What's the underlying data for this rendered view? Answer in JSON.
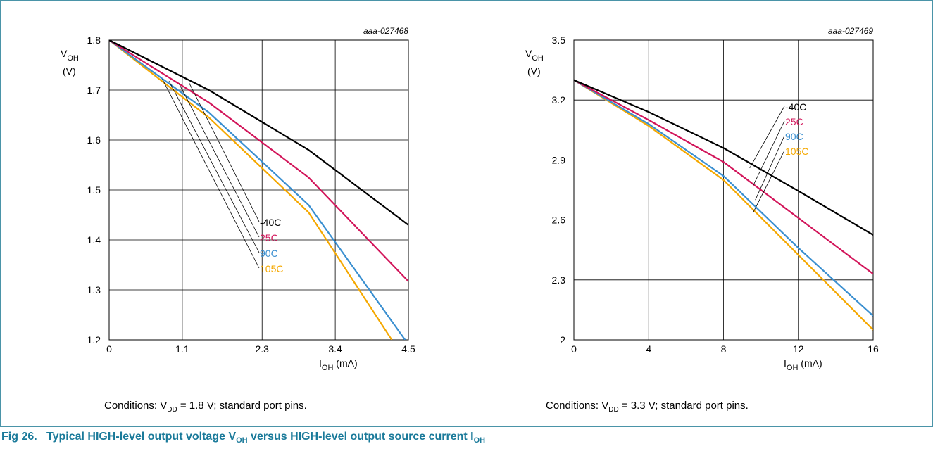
{
  "figure": {
    "number": "Fig 26.",
    "caption_pre": "Typical HIGH-level output voltage V",
    "caption_sub1": "OH",
    "caption_mid": " versus HIGH-level output source current I",
    "caption_sub2": "OH"
  },
  "colors": {
    "-40C": "#000000",
    "25C": "#d2155a",
    "90C": "#3a8fd0",
    "105C": "#f5a800",
    "frame": "#4a94a8",
    "caption": "#1a7a9a"
  },
  "chart_data": [
    {
      "type": "line",
      "identifier": "aaa-027468",
      "ylabel_main": "V",
      "ylabel_sub": "OH",
      "ylabel_unit": "(V)",
      "xlabel_main": "I",
      "xlabel_sub": "OH",
      "xlabel_unit": " (mA)",
      "x_ticks": [
        0,
        1.1,
        2.3,
        3.4,
        4.5
      ],
      "x_tick_labels": [
        "0",
        "1.1",
        "2.3",
        "3.4",
        "4.5"
      ],
      "y_ticks": [
        1.2,
        1.3,
        1.4,
        1.5,
        1.6,
        1.7,
        1.8
      ],
      "y_tick_labels": [
        "1.2",
        "1.3",
        "1.4",
        "1.5",
        "1.6",
        "1.7",
        "1.8"
      ],
      "xlim": [
        0,
        4.5
      ],
      "ylim": [
        1.2,
        1.8
      ],
      "grid": true,
      "series": [
        {
          "name": "-40C",
          "x": [
            0,
            1.5,
            3.0,
            4.5
          ],
          "y": [
            1.8,
            1.7,
            1.58,
            1.43
          ]
        },
        {
          "name": "25C",
          "x": [
            0,
            1.5,
            3.0,
            4.5
          ],
          "y": [
            1.8,
            1.675,
            1.525,
            1.317
          ]
        },
        {
          "name": "90C",
          "x": [
            0,
            1.5,
            3.0,
            4.45
          ],
          "y": [
            1.8,
            1.655,
            1.47,
            1.2
          ]
        },
        {
          "name": "105C",
          "x": [
            0,
            1.5,
            3.0,
            4.25
          ],
          "y": [
            1.8,
            1.645,
            1.455,
            1.2
          ]
        }
      ],
      "conditions_pre": "Conditions: V",
      "conditions_sub": "DD",
      "conditions_post": " = 1.8 V; standard port pins."
    },
    {
      "type": "line",
      "identifier": "aaa-027469",
      "ylabel_main": "V",
      "ylabel_sub": "OH",
      "ylabel_unit": "(V)",
      "xlabel_main": "I",
      "xlabel_sub": "OH",
      "xlabel_unit": " (mA)",
      "x_ticks": [
        0,
        4,
        8,
        12,
        16
      ],
      "x_tick_labels": [
        "0",
        "4",
        "8",
        "12",
        "16"
      ],
      "y_ticks": [
        2.0,
        2.3,
        2.6,
        2.9,
        3.2,
        3.5
      ],
      "y_tick_labels": [
        "2",
        "2.3",
        "2.6",
        "2.9",
        "3.2",
        "3.5"
      ],
      "xlim": [
        0,
        16
      ],
      "ylim": [
        2.0,
        3.5
      ],
      "grid": true,
      "series": [
        {
          "name": "-40C",
          "x": [
            0,
            4,
            8,
            12,
            16
          ],
          "y": [
            3.3,
            3.14,
            2.96,
            2.745,
            2.525
          ]
        },
        {
          "name": "25C",
          "x": [
            0,
            4,
            8,
            12,
            16
          ],
          "y": [
            3.3,
            3.1,
            2.89,
            2.61,
            2.33
          ]
        },
        {
          "name": "90C",
          "x": [
            0,
            4,
            8,
            12,
            16
          ],
          "y": [
            3.3,
            3.08,
            2.82,
            2.46,
            2.12
          ]
        },
        {
          "name": "105C",
          "x": [
            0,
            4,
            8,
            12,
            16
          ],
          "y": [
            3.3,
            3.07,
            2.8,
            2.425,
            2.05
          ]
        }
      ],
      "conditions_pre": "Conditions: V",
      "conditions_sub": "DD",
      "conditions_post": " = 3.3 V; standard port pins."
    }
  ]
}
